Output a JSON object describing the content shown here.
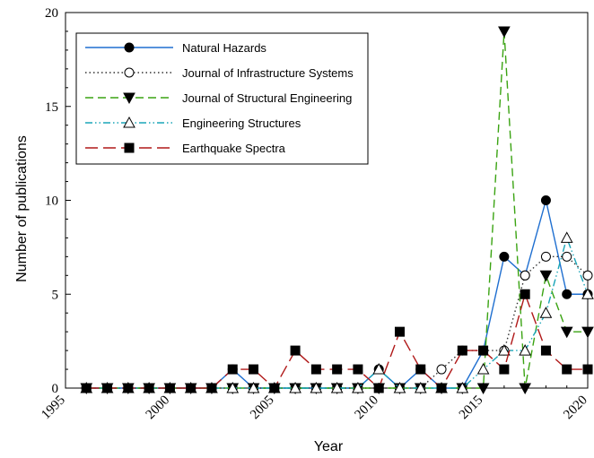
{
  "chart_data": {
    "type": "line",
    "title": "",
    "xlabel": "Year",
    "ylabel": "Number of publications",
    "xlim": [
      1995,
      2020
    ],
    "ylim": [
      0,
      20
    ],
    "xticks": [
      1995,
      2000,
      2005,
      2010,
      2015,
      2020
    ],
    "yticks": [
      0,
      5,
      10,
      15,
      20
    ],
    "x": [
      1996,
      1997,
      1998,
      1999,
      2000,
      2001,
      2002,
      2003,
      2004,
      2005,
      2006,
      2007,
      2008,
      2009,
      2010,
      2011,
      2012,
      2013,
      2014,
      2015,
      2016,
      2017,
      2018,
      2019,
      2020
    ],
    "grid": false,
    "legend_position": "top-left",
    "series": [
      {
        "name": "Natural Hazards",
        "color": "#1f6fd0",
        "dash": "solid",
        "marker": "circle-filled",
        "values": [
          0,
          0,
          0,
          0,
          0,
          0,
          0,
          1,
          0,
          0,
          0,
          0,
          0,
          0,
          1,
          0,
          1,
          0,
          0,
          2,
          7,
          6,
          10,
          5,
          5
        ]
      },
      {
        "name": "Journal of Infrastructure Systems",
        "color": "#333333",
        "dash": "dotted",
        "marker": "circle-open",
        "values": [
          0,
          0,
          0,
          0,
          0,
          0,
          0,
          0,
          0,
          0,
          0,
          0,
          0,
          0,
          0,
          0,
          0,
          1,
          2,
          2,
          2,
          6,
          7,
          7,
          6
        ]
      },
      {
        "name": "Journal of Structural Engineering",
        "color": "#3aa312",
        "dash": "dashed",
        "marker": "triangle-down-filled",
        "values": [
          0,
          0,
          0,
          0,
          0,
          0,
          0,
          0,
          0,
          0,
          0,
          0,
          0,
          0,
          0,
          0,
          0,
          0,
          0,
          0,
          19,
          0,
          6,
          3,
          3
        ]
      },
      {
        "name": "Engineering Structures",
        "color": "#1aa5b8",
        "dash": "dashdot",
        "marker": "triangle-up-open",
        "values": [
          0,
          0,
          0,
          0,
          0,
          0,
          0,
          0,
          0,
          0,
          0,
          0,
          0,
          0,
          1,
          0,
          0,
          0,
          0,
          1,
          2,
          2,
          4,
          8,
          5
        ]
      },
      {
        "name": "Earthquake Spectra",
        "color": "#b01818",
        "dash": "longdash",
        "marker": "square-filled",
        "values": [
          0,
          0,
          0,
          0,
          0,
          0,
          0,
          1,
          1,
          0,
          2,
          1,
          1,
          1,
          0,
          3,
          1,
          0,
          2,
          2,
          1,
          5,
          2,
          1,
          1
        ]
      }
    ]
  }
}
